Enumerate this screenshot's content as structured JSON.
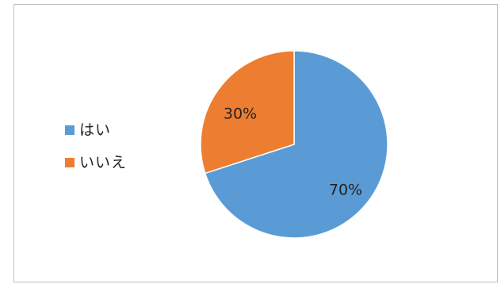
{
  "chart_data": {
    "type": "pie",
    "categories": [
      "はい",
      "いいえ"
    ],
    "values": [
      70,
      30
    ],
    "data_labels": [
      "70%",
      "30%"
    ],
    "colors": [
      "#5b9bd5",
      "#ed7d31"
    ],
    "title": "",
    "legend_position": "left",
    "start_angle_deg": 0,
    "direction": "clockwise"
  }
}
